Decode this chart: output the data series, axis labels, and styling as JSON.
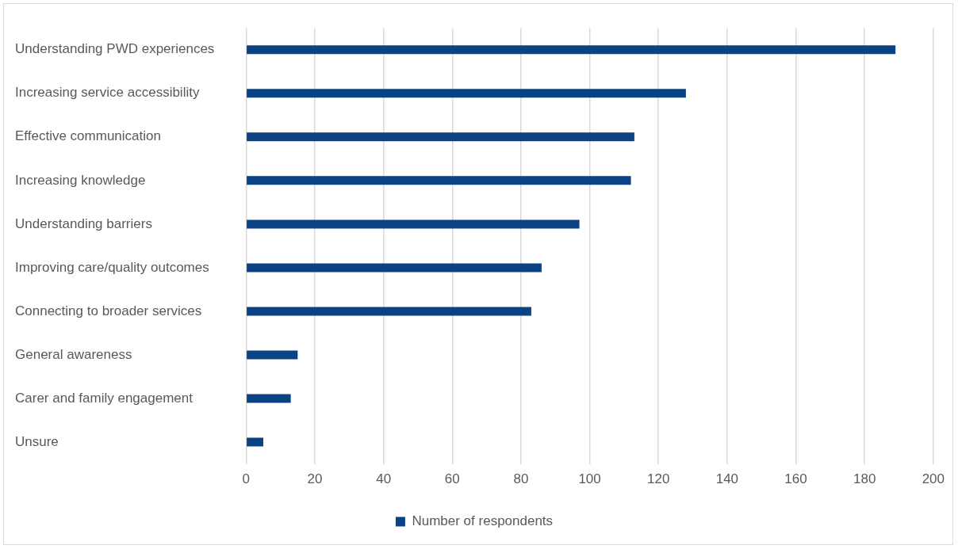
{
  "chart_data": {
    "type": "bar",
    "orientation": "horizontal",
    "categories": [
      "Understanding PWD experiences",
      "Increasing service accessibility",
      "Effective communication",
      "Increasing knowledge",
      "Understanding barriers",
      "Improving care/quality outcomes",
      "Connecting to broader services",
      "General awareness",
      "Carer and family engagement",
      "Unsure"
    ],
    "series": [
      {
        "name": "Number of respondents",
        "color": "#0b4283",
        "values": [
          189,
          128,
          113,
          112,
          97,
          86,
          83,
          15,
          13,
          5
        ]
      }
    ],
    "xlim": [
      0,
      200
    ],
    "xticks": [
      0,
      20,
      40,
      60,
      80,
      100,
      120,
      140,
      160,
      180,
      200
    ],
    "grid": "x",
    "legend": "bottom"
  }
}
